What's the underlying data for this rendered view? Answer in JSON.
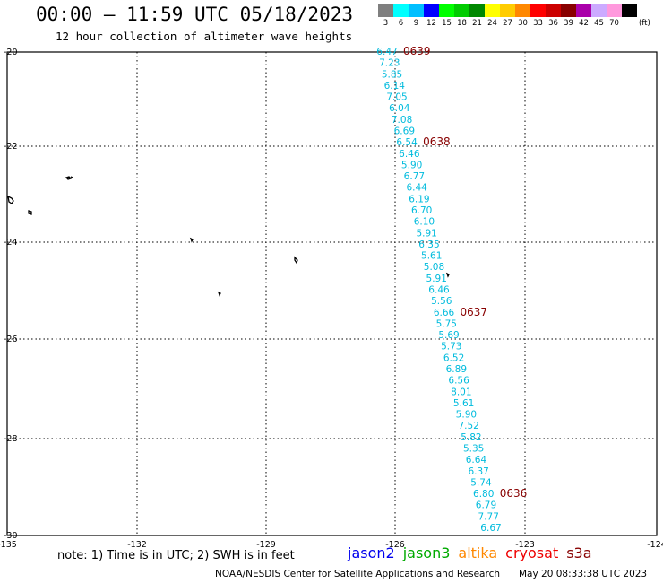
{
  "header": {
    "title": "00:00 — 11:59 UTC 05/18/2023",
    "subtitle": "12 hour collection of altimeter wave heights"
  },
  "color_scale": {
    "unit": "(ft)",
    "bins": [
      {
        "label": "3",
        "color": "#7f7f7f"
      },
      {
        "label": "6",
        "color": "#00ffff"
      },
      {
        "label": "9",
        "color": "#00bfff"
      },
      {
        "label": "12",
        "color": "#0000ff"
      },
      {
        "label": "15",
        "color": "#00ff00"
      },
      {
        "label": "18",
        "color": "#00cc00"
      },
      {
        "label": "21",
        "color": "#008800"
      },
      {
        "label": "24",
        "color": "#ffff00"
      },
      {
        "label": "27",
        "color": "#ffcc00"
      },
      {
        "label": "30",
        "color": "#ff8800"
      },
      {
        "label": "33",
        "color": "#ff0000"
      },
      {
        "label": "36",
        "color": "#cc0000"
      },
      {
        "label": "39",
        "color": "#880000"
      },
      {
        "label": "42",
        "color": "#aa00aa"
      },
      {
        "label": "45",
        "color": "#ccaaff"
      },
      {
        "label": "70",
        "color": "#ff99dd"
      },
      {
        "label": "",
        "color": "#000000"
      }
    ]
  },
  "map": {
    "lon_range": [
      -135,
      -124
    ],
    "lat_range": [
      -30,
      -20
    ],
    "lon_ticks": [
      "-135",
      "-132",
      "-129",
      "-126",
      "-123",
      "-124"
    ],
    "lat_ticks": [
      "-20",
      "-22",
      "-24",
      "-26",
      "-28",
      "-30"
    ],
    "track_color": "#00bbdd",
    "time_label_color": "#880000",
    "track_values": [
      "6.47",
      "7.23",
      "5.85",
      "6.14",
      "7.05",
      "6.04",
      "7.08",
      "6.69",
      "6.54",
      "6.46",
      "5.90",
      "6.77",
      "6.44",
      "6.19",
      "6.70",
      "6.10",
      "5.91",
      "6.35",
      "5.61",
      "5.08",
      "5.91",
      "6.46",
      "5.56",
      "6.66",
      "5.75",
      "5.69",
      "5.73",
      "6.52",
      "6.89",
      "6.56",
      "8.01",
      "5.61",
      "5.90",
      "7.52",
      "5.82",
      "5.35",
      "6.64",
      "6.37",
      "5.74",
      "6.80",
      "6.79",
      "7.77",
      "6.67"
    ],
    "time_labels": [
      "0639",
      "0638",
      "0637",
      "0636"
    ]
  },
  "chart_data": {
    "type": "scatter",
    "title": "00:00 — 11:59 UTC 05/18/2023",
    "subtitle": "12 hour collection of altimeter wave heights",
    "xlabel": "",
    "ylabel": "",
    "series": [
      {
        "name": "jason2",
        "values": []
      },
      {
        "name": "jason3",
        "values": []
      },
      {
        "name": "altika",
        "values": []
      },
      {
        "name": "cryosat",
        "values": []
      },
      {
        "name": "s3a",
        "values": [
          6.47,
          7.23,
          5.85,
          6.14,
          7.05,
          6.04,
          7.08,
          6.69,
          6.54,
          6.46,
          5.9,
          6.77,
          6.44,
          6.19,
          6.7,
          6.1,
          5.91,
          6.35,
          5.61,
          5.08,
          5.91,
          6.46,
          5.56,
          6.66,
          5.75,
          5.69,
          5.73,
          6.52,
          6.89,
          6.56,
          8.01,
          5.61,
          5.9,
          7.52,
          5.82,
          5.35,
          6.64,
          6.37,
          5.74,
          6.8,
          6.79,
          7.77,
          6.67
        ]
      }
    ],
    "time_labels": [
      "0639",
      "0638",
      "0637",
      "0636"
    ],
    "grid": true
  },
  "footer": {
    "note": "note:  1) Time is in UTC;  2) SWH is in feet",
    "satellites": [
      {
        "name": "jason2",
        "color": "#0000ee"
      },
      {
        "name": "jason3",
        "color": "#00aa00"
      },
      {
        "name": "altika",
        "color": "#ff8800"
      },
      {
        "name": "cryosat",
        "color": "#ee0000"
      },
      {
        "name": "s3a",
        "color": "#880000"
      }
    ],
    "credit": "NOAA/NESDIS Center for Satellite Applications and Research",
    "timestamp": "May 20 08:33:38 UTC 2023"
  }
}
